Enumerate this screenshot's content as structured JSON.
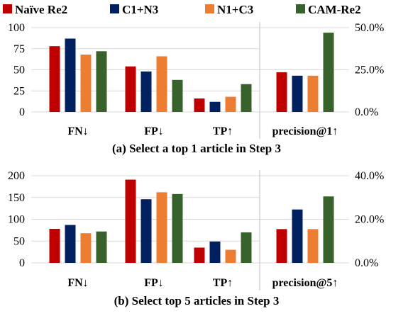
{
  "legend": [
    {
      "name": "Naïve Re2",
      "color": "#c00000"
    },
    {
      "name": "C1+N3",
      "color": "#002060"
    },
    {
      "name": "N1+C3",
      "color": "#ed7d31"
    },
    {
      "name": "CAM-Re2",
      "color": "#38622b"
    }
  ],
  "chart_data": [
    {
      "type": "bar",
      "caption": "(a) Select a top 1 article in Step 3",
      "categories": [
        "FN↓",
        "FP↓",
        "TP↑"
      ],
      "ylim": [
        0,
        100
      ],
      "yticks": [
        "100",
        "75",
        "50",
        "25",
        "0"
      ],
      "series": [
        {
          "name": "Naïve Re2",
          "values": [
            78,
            54,
            16
          ]
        },
        {
          "name": "C1+N3",
          "values": [
            87,
            48,
            12
          ]
        },
        {
          "name": "N1+C3",
          "values": [
            68,
            66,
            18
          ]
        },
        {
          "name": "CAM-Re2",
          "values": [
            72,
            38,
            33
          ]
        }
      ],
      "secondary": {
        "category": "precision@1↑",
        "ylim": [
          0,
          0.5
        ],
        "yticks": [
          "50.0%",
          "25.0%",
          "0.0%"
        ],
        "values": [
          0.235,
          0.215,
          0.215,
          0.47
        ]
      },
      "grid": true
    },
    {
      "type": "bar",
      "caption": "(b) Select top 5 articles in Step 3",
      "categories": [
        "FN↓",
        "FP↓",
        "TP↑"
      ],
      "ylim": [
        0,
        200
      ],
      "yticks": [
        "200",
        "150",
        "100",
        "50",
        "0"
      ],
      "series": [
        {
          "name": "Naïve Re2",
          "values": [
            78,
            191,
            35
          ]
        },
        {
          "name": "C1+N3",
          "values": [
            87,
            146,
            49
          ]
        },
        {
          "name": "N1+C3",
          "values": [
            68,
            162,
            30
          ]
        },
        {
          "name": "CAM-Re2",
          "values": [
            72,
            158,
            70
          ]
        }
      ],
      "secondary": {
        "category": "precision@5↑",
        "ylim": [
          0,
          0.4
        ],
        "yticks": [
          "40.0%",
          "20.0%",
          "0.0%"
        ],
        "values": [
          0.155,
          0.245,
          0.155,
          0.305
        ]
      },
      "grid": true
    }
  ]
}
